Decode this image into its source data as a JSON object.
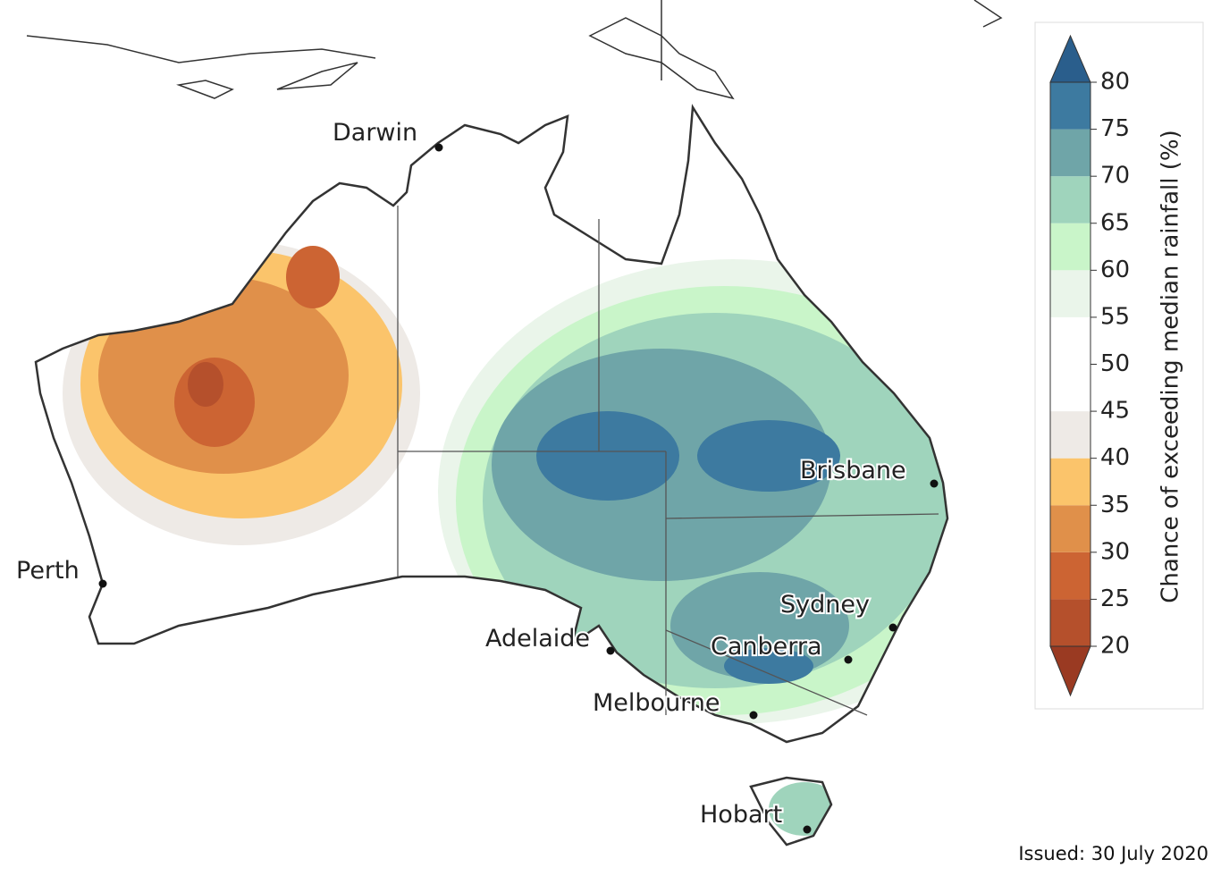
{
  "map": {
    "cities": [
      "Darwin",
      "Perth",
      "Adelaide",
      "Melbourne",
      "Canberra",
      "Sydney",
      "Brisbane",
      "Hobart"
    ],
    "legend": {
      "title": "Chance of exceeding median rainfall (%)",
      "ticks": [
        20,
        25,
        30,
        35,
        40,
        45,
        50,
        55,
        60,
        65,
        70,
        75,
        80
      ],
      "colors": [
        "#b5502c",
        "#cc6433",
        "#e0904a",
        "#fbc46b",
        "#eeeae6",
        "#ffffff",
        "#ffffff",
        "#eaf5ea",
        "#c9f5c9",
        "#9fd4bc",
        "#6fa5a8",
        "#3d7aa0"
      ],
      "under_color": "#9a3a22",
      "over_color": "#2a5e8c"
    },
    "issued": "Issued: 30 July 2020"
  }
}
